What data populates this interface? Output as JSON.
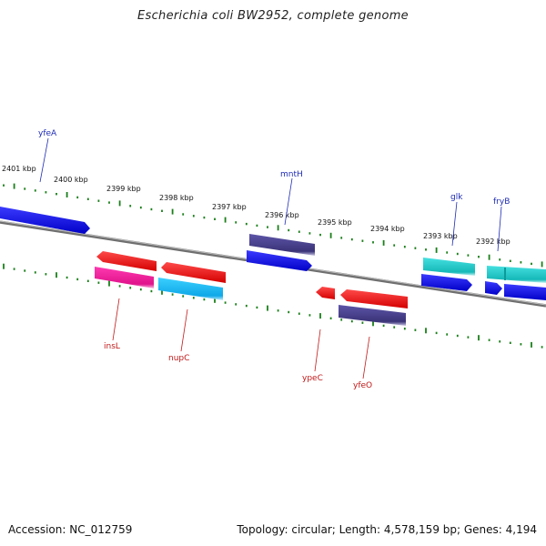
{
  "title": "Escherichia coli BW2952, complete genome",
  "footer": {
    "accession": "Accession: NC_012759",
    "summary": "Topology: circular; Length: 4,578,159 bp; Genes: 4,194"
  },
  "scale": {
    "labels": [
      "2401 kbp",
      "2400 kbp",
      "2399 kbp",
      "2398 kbp",
      "2397 kbp",
      "2396 kbp",
      "2395 kbp",
      "2394 kbp",
      "2393 kbp",
      "2392 kbp"
    ]
  },
  "genes_top": [
    {
      "name": "yfeA",
      "color": "#0000ff"
    },
    {
      "name": "mntH",
      "color": "#0000ff"
    },
    {
      "name": "glk",
      "color": "#0000ff"
    },
    {
      "name": "fryB",
      "color": "#0000ff"
    }
  ],
  "genes_bottom": [
    {
      "name": "insL",
      "color": "#ff0000"
    },
    {
      "name": "nupC",
      "color": "#ff0000"
    },
    {
      "name": "ypeC",
      "color": "#ff0000"
    },
    {
      "name": "yfeO",
      "color": "#ff0000"
    }
  ],
  "colors": {
    "cds_forward": "#0000ff",
    "cds_reverse": "#ff0000",
    "rna": "#483d8b",
    "mobile": "#ff1493",
    "other": "#00ced1",
    "backbone": "#888888",
    "ticks": "#1a7f1a"
  }
}
